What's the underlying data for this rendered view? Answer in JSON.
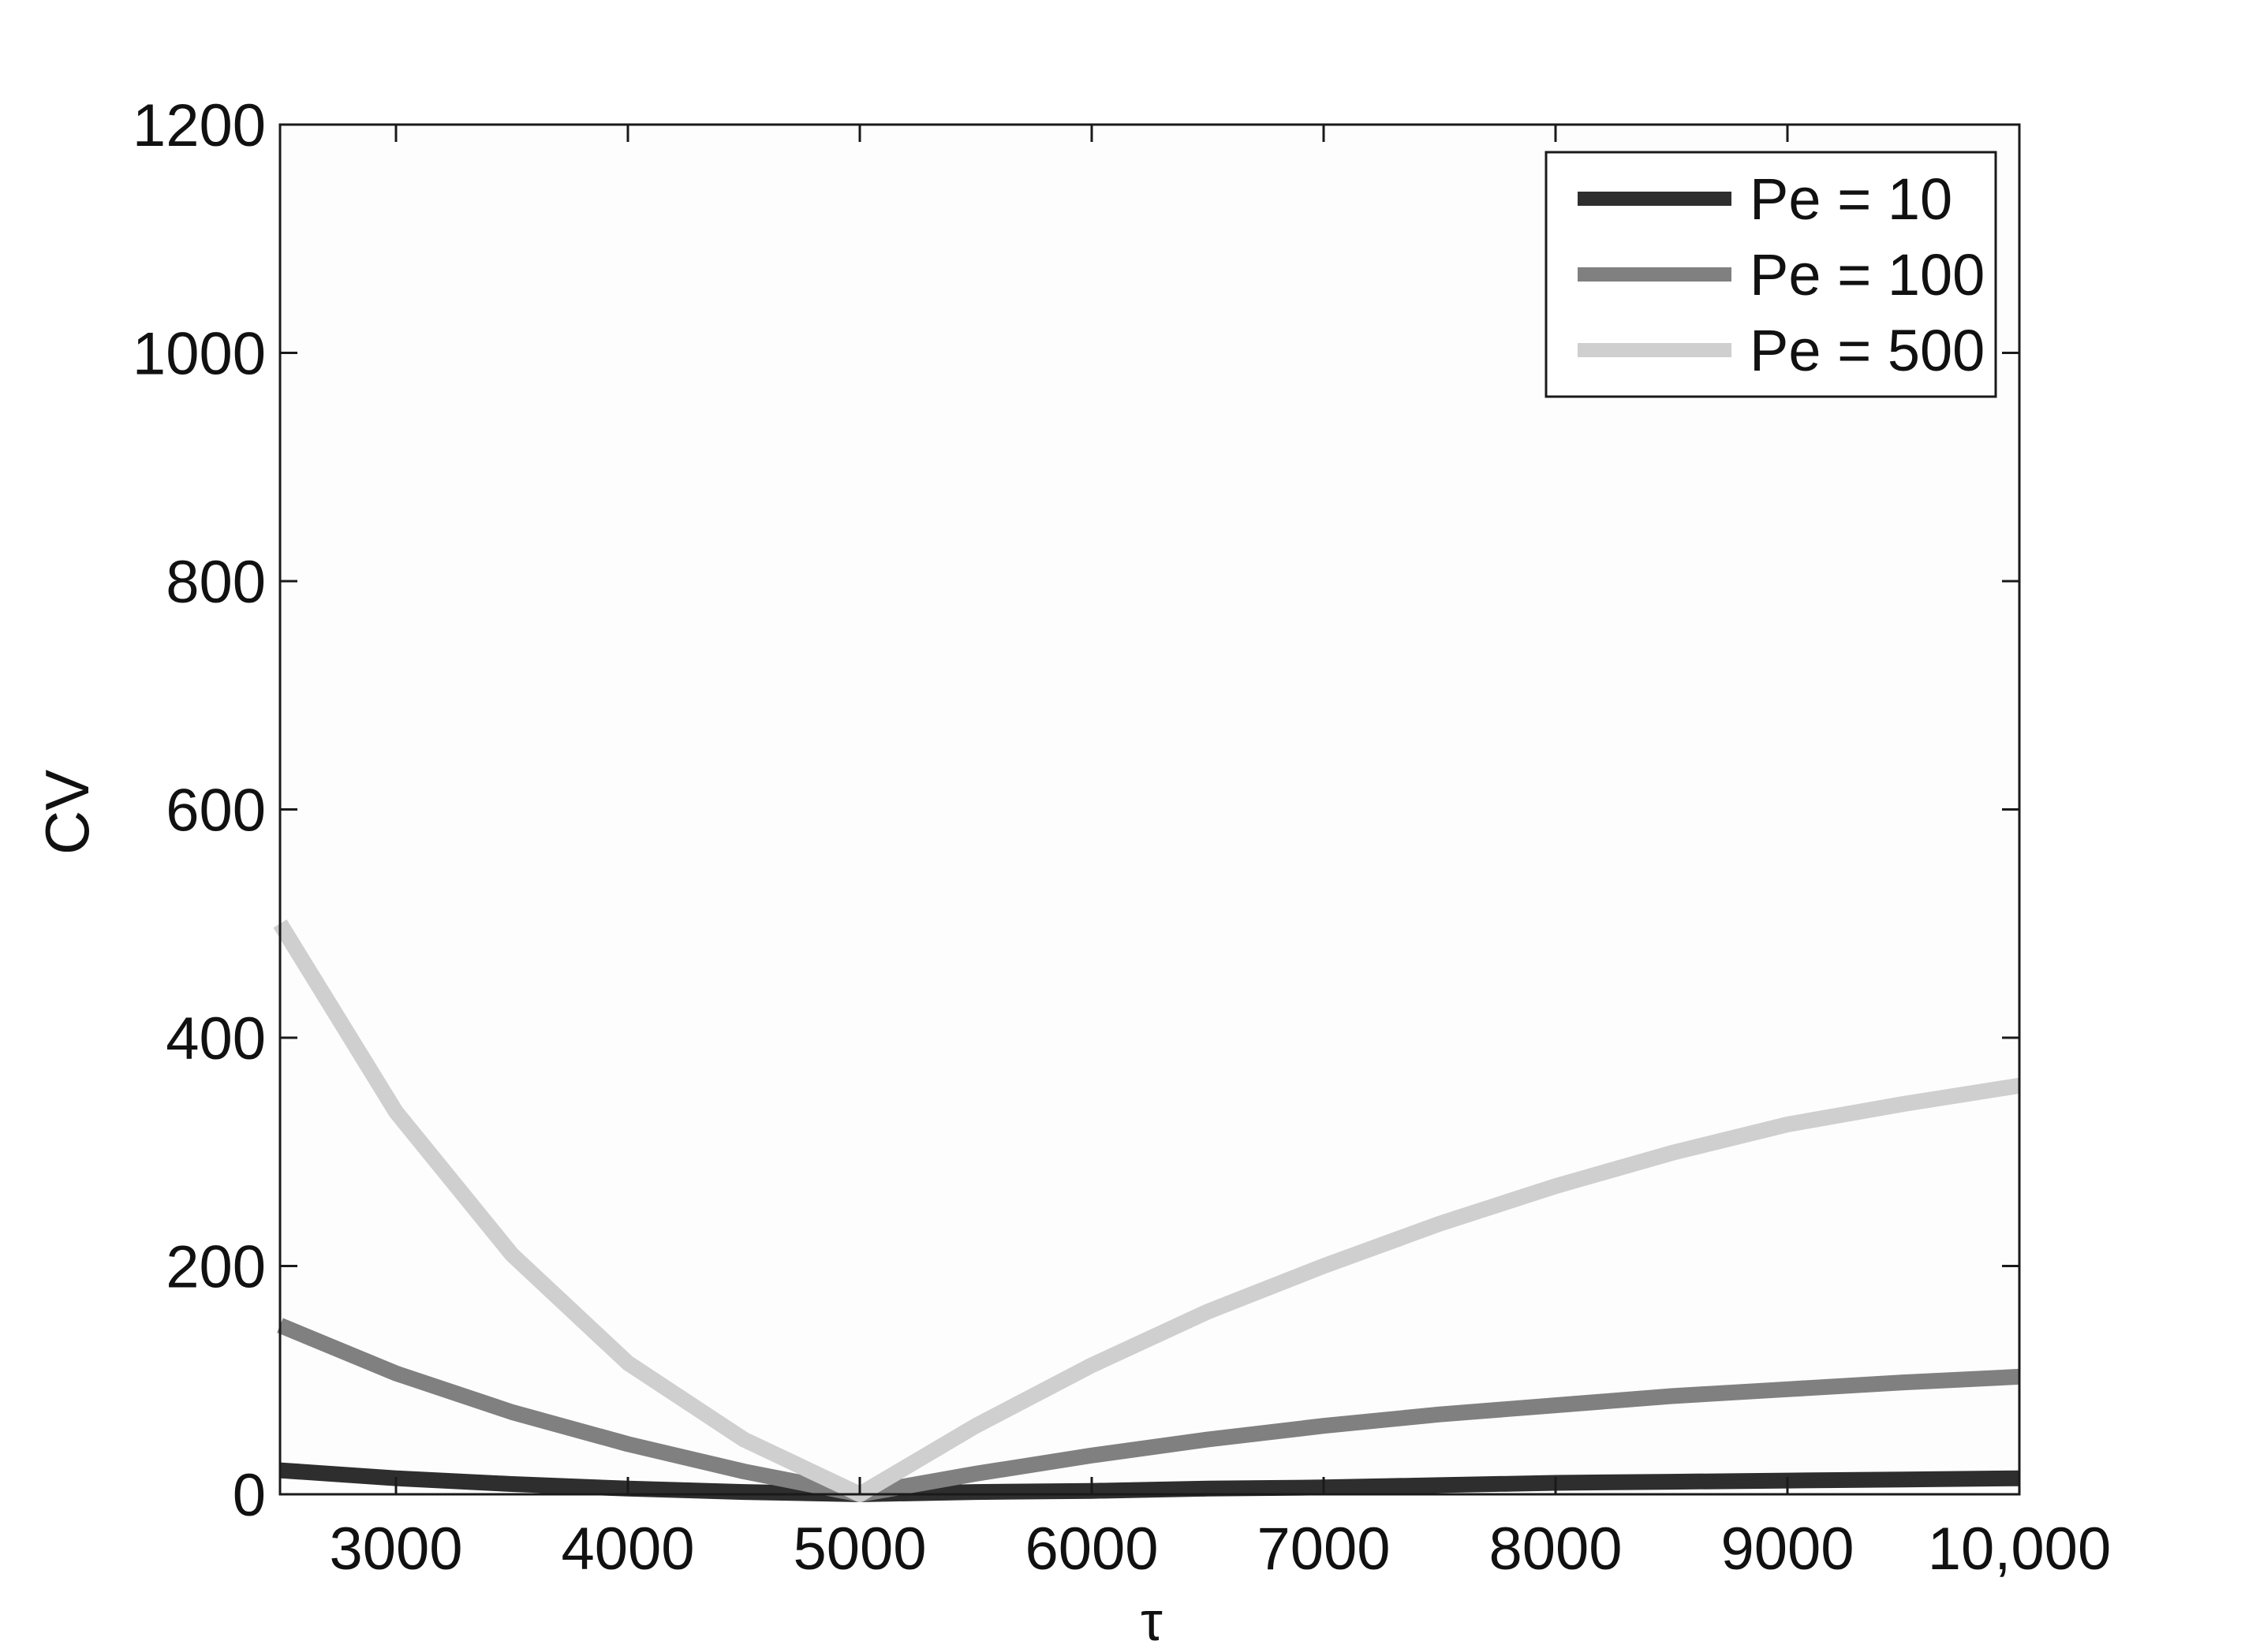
{
  "chart_data": {
    "type": "line",
    "title": "",
    "xlabel": "τ",
    "ylabel": "CV",
    "xlim": [
      2500,
      10000
    ],
    "ylim": [
      0,
      1200
    ],
    "xticks": [
      3000,
      4000,
      5000,
      6000,
      7000,
      8000,
      9000,
      10000
    ],
    "xtick_labels": [
      "3000",
      "4000",
      "5000",
      "6000",
      "7000",
      "8000",
      "9000",
      "10,000"
    ],
    "yticks": [
      0,
      200,
      400,
      600,
      800,
      1000,
      1200
    ],
    "ytick_labels": [
      "0",
      "200",
      "400",
      "600",
      "800",
      "1000",
      "1200"
    ],
    "grid": false,
    "legend_position": "top-right",
    "series": [
      {
        "name": "Pe = 10",
        "color": "#2e2e2e",
        "x": [
          2500,
          3000,
          3500,
          4000,
          4500,
          5000,
          5500,
          6000,
          6500,
          7000,
          7500,
          8000,
          8500,
          9000,
          9500,
          10000
        ],
        "y": [
          21,
          14,
          9,
          5,
          2,
          0,
          2,
          3,
          5,
          6,
          8,
          10,
          11,
          12,
          13,
          14
        ]
      },
      {
        "name": "Pe = 100",
        "color": "#808080",
        "x": [
          2500,
          3000,
          3500,
          4000,
          4500,
          5000,
          5500,
          6000,
          6500,
          7000,
          7500,
          8000,
          8500,
          9000,
          9500,
          10000
        ],
        "y": [
          148,
          106,
          72,
          44,
          20,
          0,
          18,
          34,
          48,
          60,
          70,
          78,
          86,
          92,
          98,
          103
        ]
      },
      {
        "name": "Pe = 500",
        "color": "#cfcfcf",
        "x": [
          2500,
          3000,
          3500,
          4000,
          4500,
          5000,
          5500,
          6000,
          6500,
          7000,
          7500,
          8000,
          8500,
          9000,
          9500,
          10000
        ],
        "y": [
          500,
          335,
          210,
          115,
          48,
          0,
          60,
          113,
          160,
          200,
          237,
          270,
          299,
          324,
          342,
          358
        ]
      }
    ]
  }
}
